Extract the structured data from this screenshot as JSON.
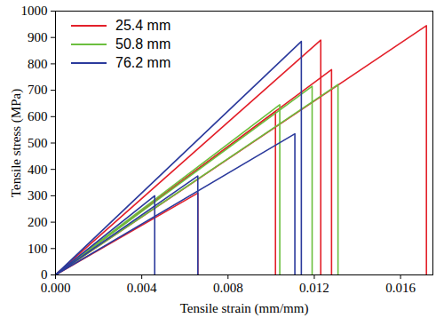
{
  "chart_data": {
    "type": "line",
    "x_label": "Tensile strain (mm/mm)",
    "y_label": "Tensile stress (MPa)",
    "xlim": [
      0,
      0.0175
    ],
    "ylim": [
      0,
      1000
    ],
    "xticks": [
      {
        "value": 0,
        "label": "0.000"
      },
      {
        "value": 0.004,
        "label": "0.004"
      },
      {
        "value": 0.008,
        "label": "0.008"
      },
      {
        "value": 0.012,
        "label": "0.012"
      },
      {
        "value": 0.016,
        "label": "0.016"
      }
    ],
    "yticks": [
      0,
      100,
      200,
      300,
      400,
      500,
      600,
      700,
      800,
      900,
      1000
    ],
    "legend": "upper left",
    "series": [
      {
        "name": "25.4 mm",
        "color": "#e3202a",
        "x": [
          0,
          0.0172,
          0.0172,
          null,
          0,
          0.0123,
          0.0123,
          null,
          0,
          0.0128,
          0.0128,
          null,
          0,
          0.0102,
          0.0102,
          null,
          0,
          0.0066,
          0.0066
        ],
        "values": [
          0,
          945,
          0,
          null,
          0,
          890,
          0,
          null,
          0,
          778,
          0,
          null,
          0,
          620,
          0,
          null,
          0,
          310,
          0
        ]
      },
      {
        "name": "50.8 mm",
        "color": "#6cbf3f",
        "x": [
          0,
          0.0104,
          0.0104,
          null,
          0,
          0.0119,
          0.0119,
          null,
          0,
          0.0131,
          0.0131
        ],
        "values": [
          0,
          645,
          0,
          null,
          0,
          715,
          0,
          null,
          0,
          722,
          0
        ]
      },
      {
        "name": "76.2 mm",
        "color": "#2b3a9c",
        "x": [
          0,
          0.0114,
          0.0114,
          null,
          0,
          0.0111,
          0.0111,
          null,
          0,
          0.0066,
          0.0066,
          null,
          0,
          0.0046,
          0.0046
        ],
        "values": [
          0,
          885,
          0,
          null,
          0,
          535,
          0,
          null,
          0,
          375,
          0,
          null,
          0,
          300,
          0
        ]
      }
    ]
  }
}
